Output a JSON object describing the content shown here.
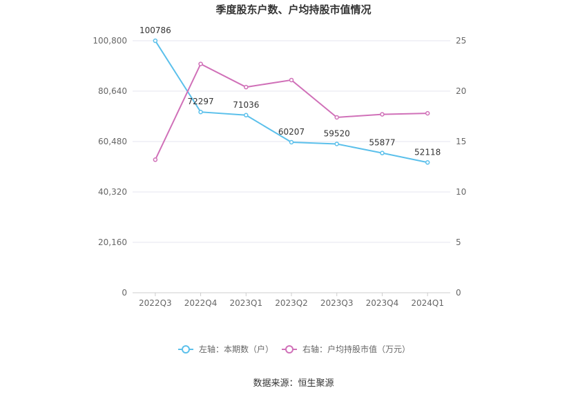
{
  "chart_data": {
    "type": "line",
    "title": "季度股东户数、户均持股市值情况",
    "categories": [
      "2022Q3",
      "2022Q4",
      "2023Q1",
      "2023Q2",
      "2023Q3",
      "2023Q4",
      "2024Q1"
    ],
    "series": [
      {
        "name": "左轴：本期数（户）",
        "axis": "left",
        "color": "#5bc0eb",
        "values": [
          100786,
          72297,
          71036,
          60207,
          59520,
          55877,
          52118
        ],
        "labels": [
          "100786",
          "72297",
          "71036",
          "60207",
          "59520",
          "55877",
          "52118"
        ]
      },
      {
        "name": "右轴：户均持股市值（万元）",
        "axis": "right",
        "color": "#d070b8",
        "values": [
          13.2,
          22.7,
          20.4,
          21.1,
          17.4,
          17.7,
          17.8
        ]
      }
    ],
    "left_axis": {
      "min": 0,
      "max": 100800,
      "ticks": [
        "0",
        "20,160",
        "40,320",
        "60,480",
        "80,640",
        "100,800"
      ],
      "tick_values": [
        0,
        20160,
        40320,
        60480,
        80640,
        100800
      ]
    },
    "right_axis": {
      "min": 0,
      "max": 25,
      "ticks": [
        "0",
        "5",
        "10",
        "15",
        "20",
        "25"
      ],
      "tick_values": [
        0,
        5,
        10,
        15,
        20,
        25
      ]
    },
    "grid": true,
    "legend_position": "bottom"
  },
  "source": "数据来源：恒生聚源"
}
